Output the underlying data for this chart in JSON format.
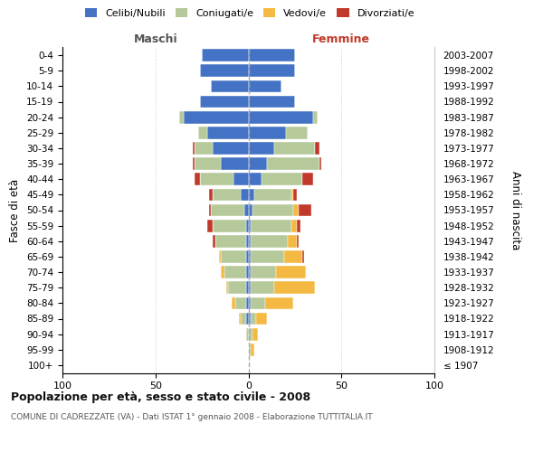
{
  "age_groups": [
    "100+",
    "95-99",
    "90-94",
    "85-89",
    "80-84",
    "75-79",
    "70-74",
    "65-69",
    "60-64",
    "55-59",
    "50-54",
    "45-49",
    "40-44",
    "35-39",
    "30-34",
    "25-29",
    "20-24",
    "15-19",
    "10-14",
    "5-9",
    "0-4"
  ],
  "birth_years": [
    "≤ 1907",
    "1908-1912",
    "1913-1917",
    "1918-1922",
    "1923-1927",
    "1928-1932",
    "1933-1937",
    "1938-1942",
    "1943-1947",
    "1948-1952",
    "1953-1957",
    "1958-1962",
    "1963-1967",
    "1968-1972",
    "1973-1977",
    "1978-1982",
    "1983-1987",
    "1988-1992",
    "1993-1997",
    "1998-2002",
    "2003-2007"
  ],
  "maschi": {
    "celibi": [
      0,
      0,
      0,
      1,
      1,
      1,
      1,
      1,
      1,
      1,
      2,
      4,
      8,
      15,
      19,
      22,
      35,
      26,
      20,
      26,
      25
    ],
    "coniugati": [
      0,
      0,
      1,
      3,
      6,
      10,
      12,
      14,
      17,
      18,
      18,
      15,
      18,
      14,
      10,
      5,
      2,
      0,
      0,
      0,
      0
    ],
    "vedovi": [
      0,
      0,
      0,
      1,
      2,
      1,
      2,
      1,
      0,
      0,
      0,
      0,
      0,
      0,
      0,
      0,
      0,
      0,
      0,
      0,
      0
    ],
    "divorziati": [
      0,
      0,
      0,
      0,
      0,
      0,
      0,
      0,
      1,
      3,
      1,
      2,
      3,
      1,
      1,
      0,
      0,
      0,
      0,
      0,
      0
    ]
  },
  "femmine": {
    "nubili": [
      0,
      0,
      0,
      1,
      1,
      1,
      1,
      1,
      1,
      1,
      2,
      3,
      7,
      10,
      14,
      20,
      35,
      25,
      18,
      25,
      25
    ],
    "coniugate": [
      0,
      1,
      2,
      3,
      8,
      13,
      14,
      18,
      20,
      22,
      22,
      20,
      22,
      28,
      22,
      12,
      2,
      0,
      0,
      0,
      0
    ],
    "vedove": [
      0,
      2,
      3,
      6,
      15,
      22,
      16,
      10,
      5,
      3,
      3,
      1,
      0,
      0,
      0,
      0,
      0,
      0,
      0,
      0,
      0
    ],
    "divorziate": [
      0,
      0,
      0,
      0,
      0,
      0,
      0,
      1,
      1,
      2,
      7,
      2,
      6,
      1,
      2,
      0,
      0,
      0,
      0,
      0,
      0
    ]
  },
  "colors": {
    "celibi_nubili": "#4472c4",
    "coniugati_e": "#b5c99a",
    "vedovi_e": "#f4b942",
    "divorziati_e": "#c0392b"
  },
  "xlim": [
    -100,
    100
  ],
  "xticks": [
    -100,
    -50,
    0,
    50,
    100
  ],
  "xticklabels": [
    "100",
    "50",
    "0",
    "50",
    "100"
  ],
  "title": "Popolazione per età, sesso e stato civile - 2008",
  "subtitle": "COMUNE DI CADREZZATE (VA) - Dati ISTAT 1° gennaio 2008 - Elaborazione TUTTITALIA.IT",
  "ylabel_left": "Fasce di età",
  "ylabel_right": "Anni di nascita",
  "label_maschi": "Maschi",
  "label_femmine": "Femmine",
  "legend_labels": [
    "Celibi/Nubili",
    "Coniugati/e",
    "Vedovi/e",
    "Divorziati/e"
  ],
  "background_color": "#ffffff",
  "grid_color": "#cccccc"
}
